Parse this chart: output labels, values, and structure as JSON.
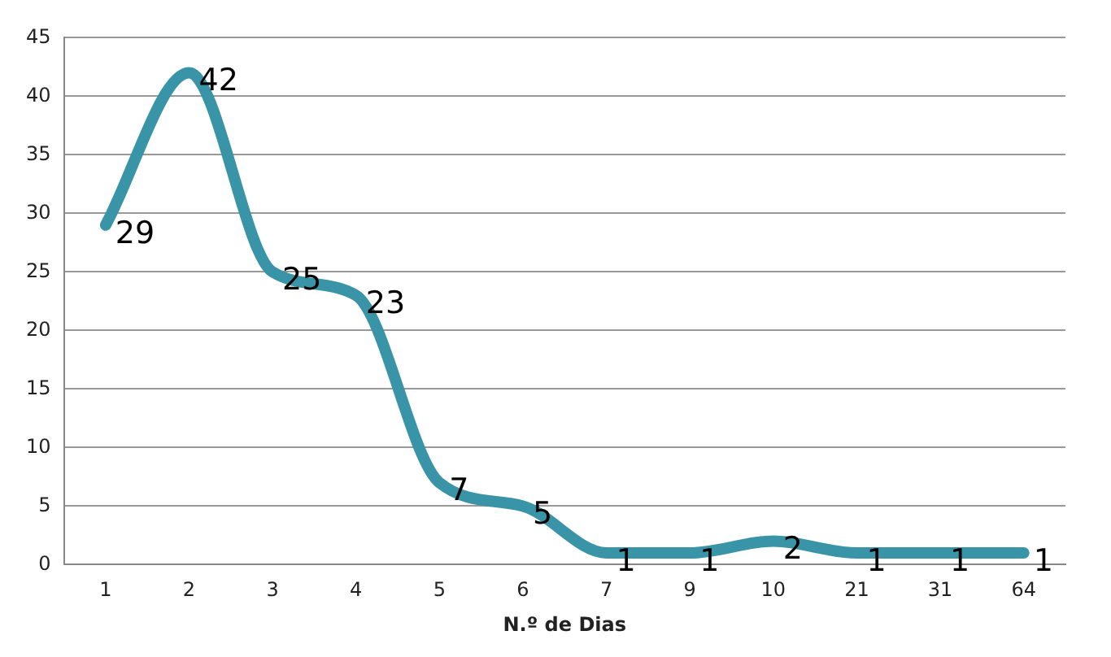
{
  "chart_data": {
    "type": "line",
    "xlabel": "N.º de Dias",
    "categories": [
      "1",
      "2",
      "3",
      "4",
      "5",
      "6",
      "7",
      "9",
      "10",
      "21",
      "31",
      "64"
    ],
    "series": [
      {
        "color": "#3a94a8",
        "values": [
          29,
          42,
          25,
          23,
          7,
          5,
          1,
          1,
          2,
          1,
          1,
          1
        ]
      }
    ],
    "ylim": [
      0,
      45
    ],
    "yticks": [
      0,
      5,
      10,
      15,
      20,
      25,
      30,
      35,
      40,
      45
    ],
    "grid": "y",
    "data_labels": true,
    "legend": false,
    "marker": "none"
  }
}
